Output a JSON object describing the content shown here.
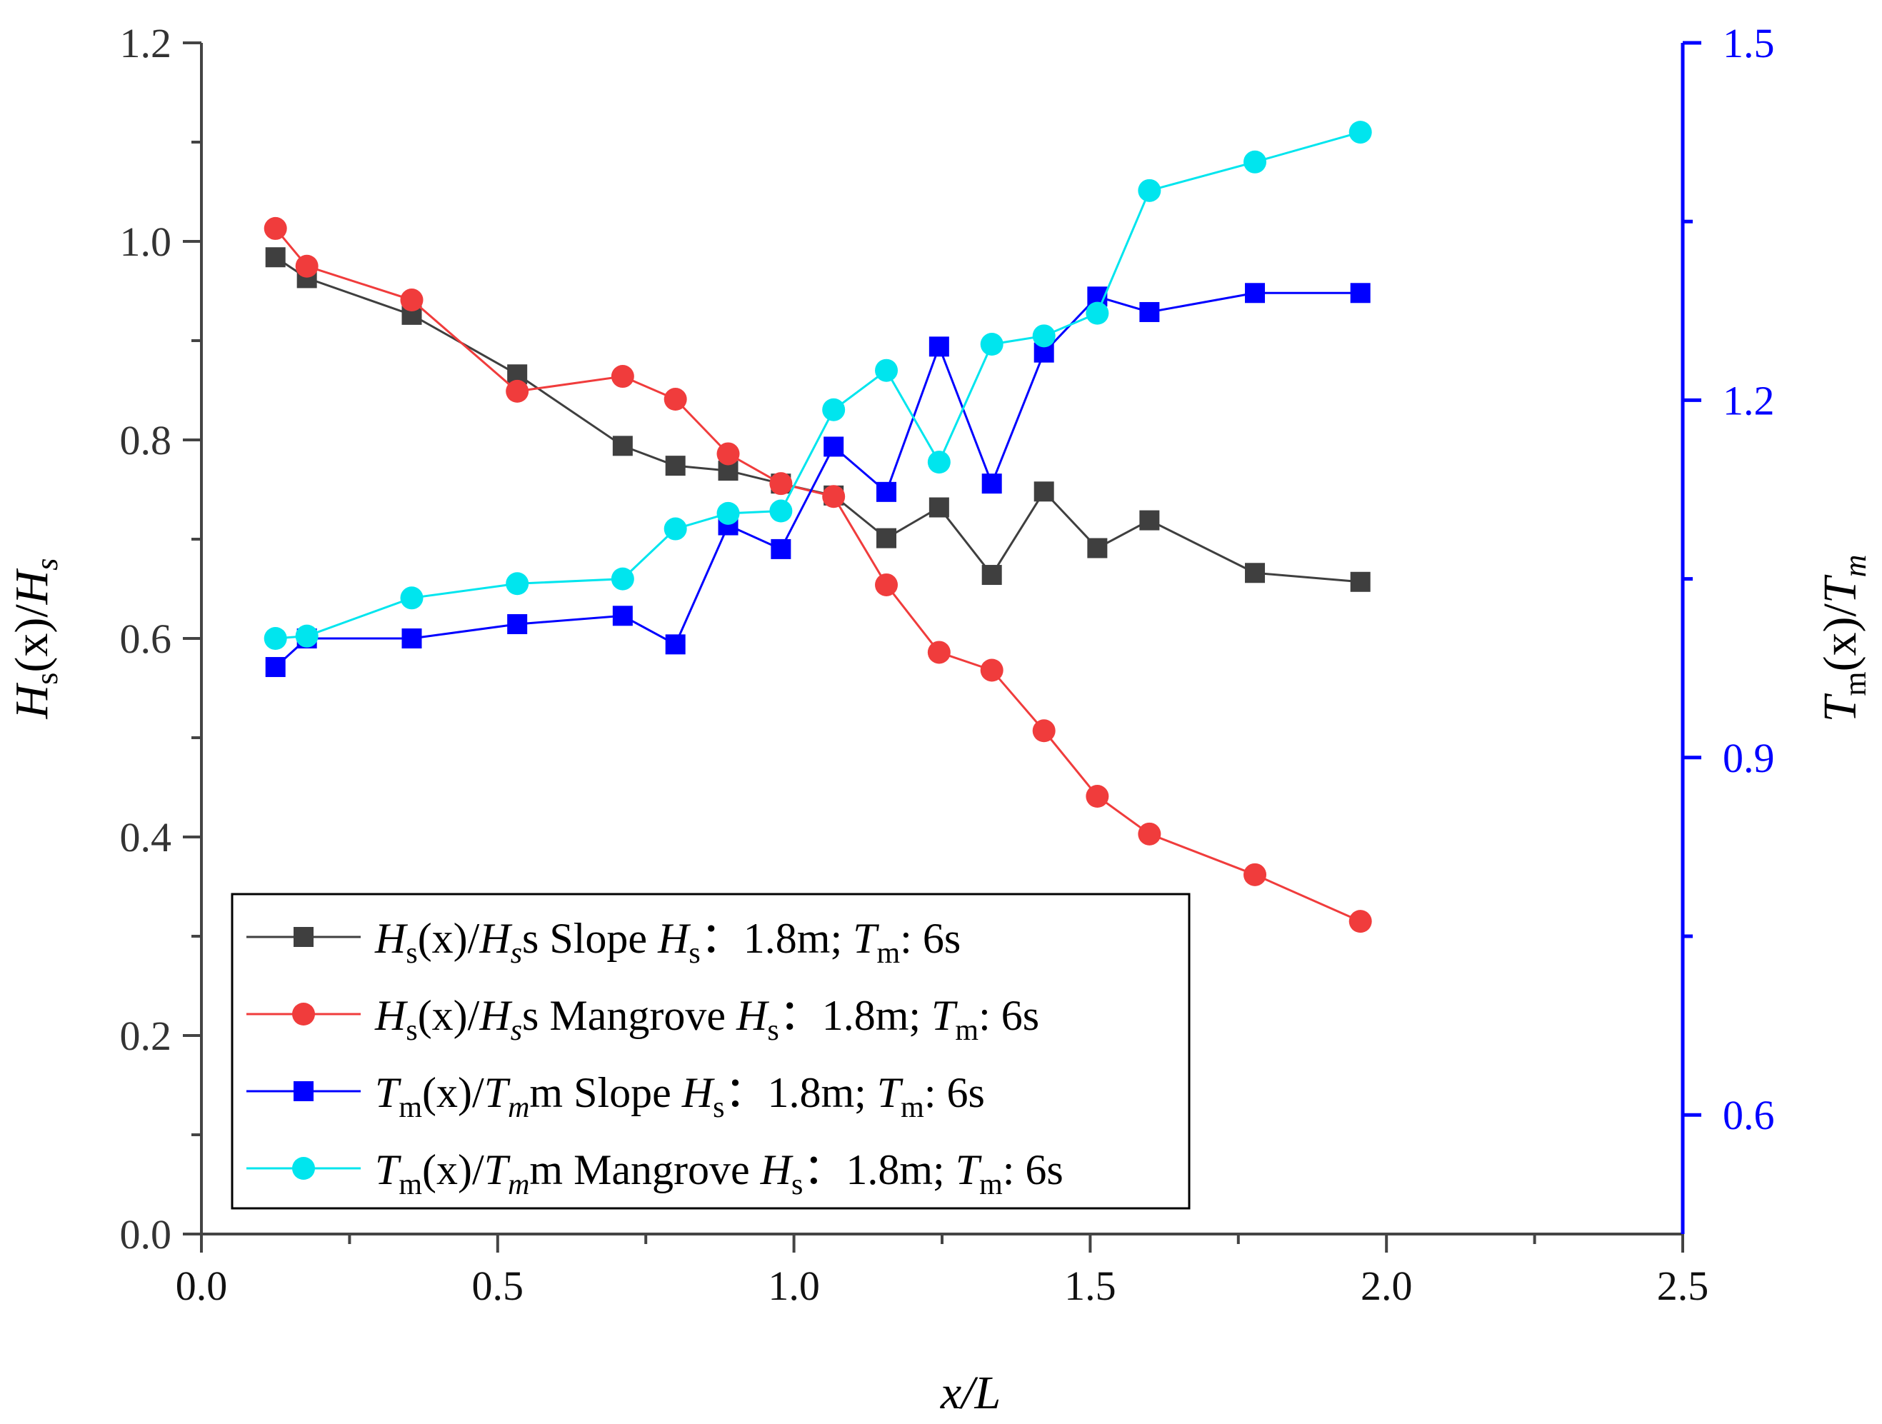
{
  "chart_data": {
    "type": "line",
    "title": "",
    "xlabel": "x/L",
    "ylabel_left": "Hs(x)/Hs",
    "ylabel_right": "Tm(x)/Tm",
    "xlim": [
      0,
      2.5
    ],
    "ylim_left": [
      0,
      1.2
    ],
    "ylim_right": [
      0.5,
      1.5
    ],
    "x_ticks": [
      "0.0",
      "0.5",
      "1.0",
      "1.5",
      "2.0",
      "2.5"
    ],
    "y_left_ticks": [
      "0.0",
      "0.2",
      "0.4",
      "0.6",
      "0.8",
      "1.0",
      "1.2"
    ],
    "y_right_ticks": [
      "0.6",
      "0.9",
      "1.2",
      "1.5"
    ],
    "grid": false,
    "legend_position": "bottom-left",
    "series": [
      {
        "name": "Hs(x)/Hs Slope Hs：1.8m; Tm: 6s",
        "legend_parts": [
          "Hs(x)/Hs Slope",
          "Hs",
          "：1.8m;",
          "Tm",
          ": 6s"
        ],
        "axis": "left",
        "marker": "square",
        "color": "#3f3f3f",
        "x": [
          0.125,
          0.178,
          0.355,
          0.533,
          0.711,
          0.8,
          0.889,
          0.978,
          1.067,
          1.156,
          1.245,
          1.334,
          1.422,
          1.512,
          1.6,
          1.778,
          1.956
        ],
        "values": [
          0.984,
          0.963,
          0.926,
          0.866,
          0.794,
          0.774,
          0.769,
          0.756,
          0.744,
          0.701,
          0.732,
          0.664,
          0.748,
          0.691,
          0.719,
          0.666,
          0.657
        ]
      },
      {
        "name": "Hs(x)/Hs Mangrove Hs：1.8m; Tm: 6s",
        "legend_parts": [
          "Hs(x)/Hs Mangrove",
          "Hs",
          "：1.8m;",
          "Tm",
          ": 6s"
        ],
        "axis": "left",
        "marker": "circle",
        "color": "#f03c3c",
        "x": [
          0.125,
          0.178,
          0.355,
          0.533,
          0.711,
          0.8,
          0.889,
          0.978,
          1.067,
          1.156,
          1.245,
          1.334,
          1.422,
          1.512,
          1.6,
          1.778,
          1.956
        ],
        "values": [
          1.013,
          0.975,
          0.941,
          0.849,
          0.864,
          0.841,
          0.786,
          0.756,
          0.743,
          0.654,
          0.586,
          0.568,
          0.507,
          0.441,
          0.403,
          0.362,
          0.315
        ]
      },
      {
        "name": "Tm(x)/Tm Slope Hs：1.8m; Tm: 6s",
        "legend_parts": [
          "Tm(x)/Tm Slope",
          "Hs",
          "：1.8m;",
          "Tm",
          ": 6s"
        ],
        "axis": "right",
        "marker": "square",
        "color": "#0000ff",
        "x": [
          0.125,
          0.178,
          0.355,
          0.533,
          0.711,
          0.8,
          0.889,
          0.978,
          1.067,
          1.156,
          1.245,
          1.334,
          1.422,
          1.512,
          1.6,
          1.778,
          1.956
        ],
        "values": [
          0.976,
          1.0,
          1.0,
          1.012,
          1.019,
          0.995,
          1.095,
          1.075,
          1.161,
          1.123,
          1.245,
          1.13,
          1.24,
          1.287,
          1.274,
          1.29,
          1.29
        ]
      },
      {
        "name": "Tm(x)/Tm Mangrove Hs：1.8m; Tm: 6s",
        "legend_parts": [
          "Tm(x)/Tm Mangrove",
          "Hs",
          "：1.8m;",
          "Tm",
          ": 6s"
        ],
        "axis": "right",
        "marker": "circle",
        "color": "#00e5ee",
        "x": [
          0.125,
          0.178,
          0.355,
          0.533,
          0.711,
          0.8,
          0.889,
          0.978,
          1.067,
          1.156,
          1.245,
          1.334,
          1.422,
          1.512,
          1.6,
          1.778,
          1.956
        ],
        "values": [
          1.0,
          1.002,
          1.034,
          1.046,
          1.05,
          1.092,
          1.105,
          1.107,
          1.192,
          1.225,
          1.148,
          1.247,
          1.254,
          1.273,
          1.376,
          1.4,
          1.425
        ]
      }
    ]
  }
}
